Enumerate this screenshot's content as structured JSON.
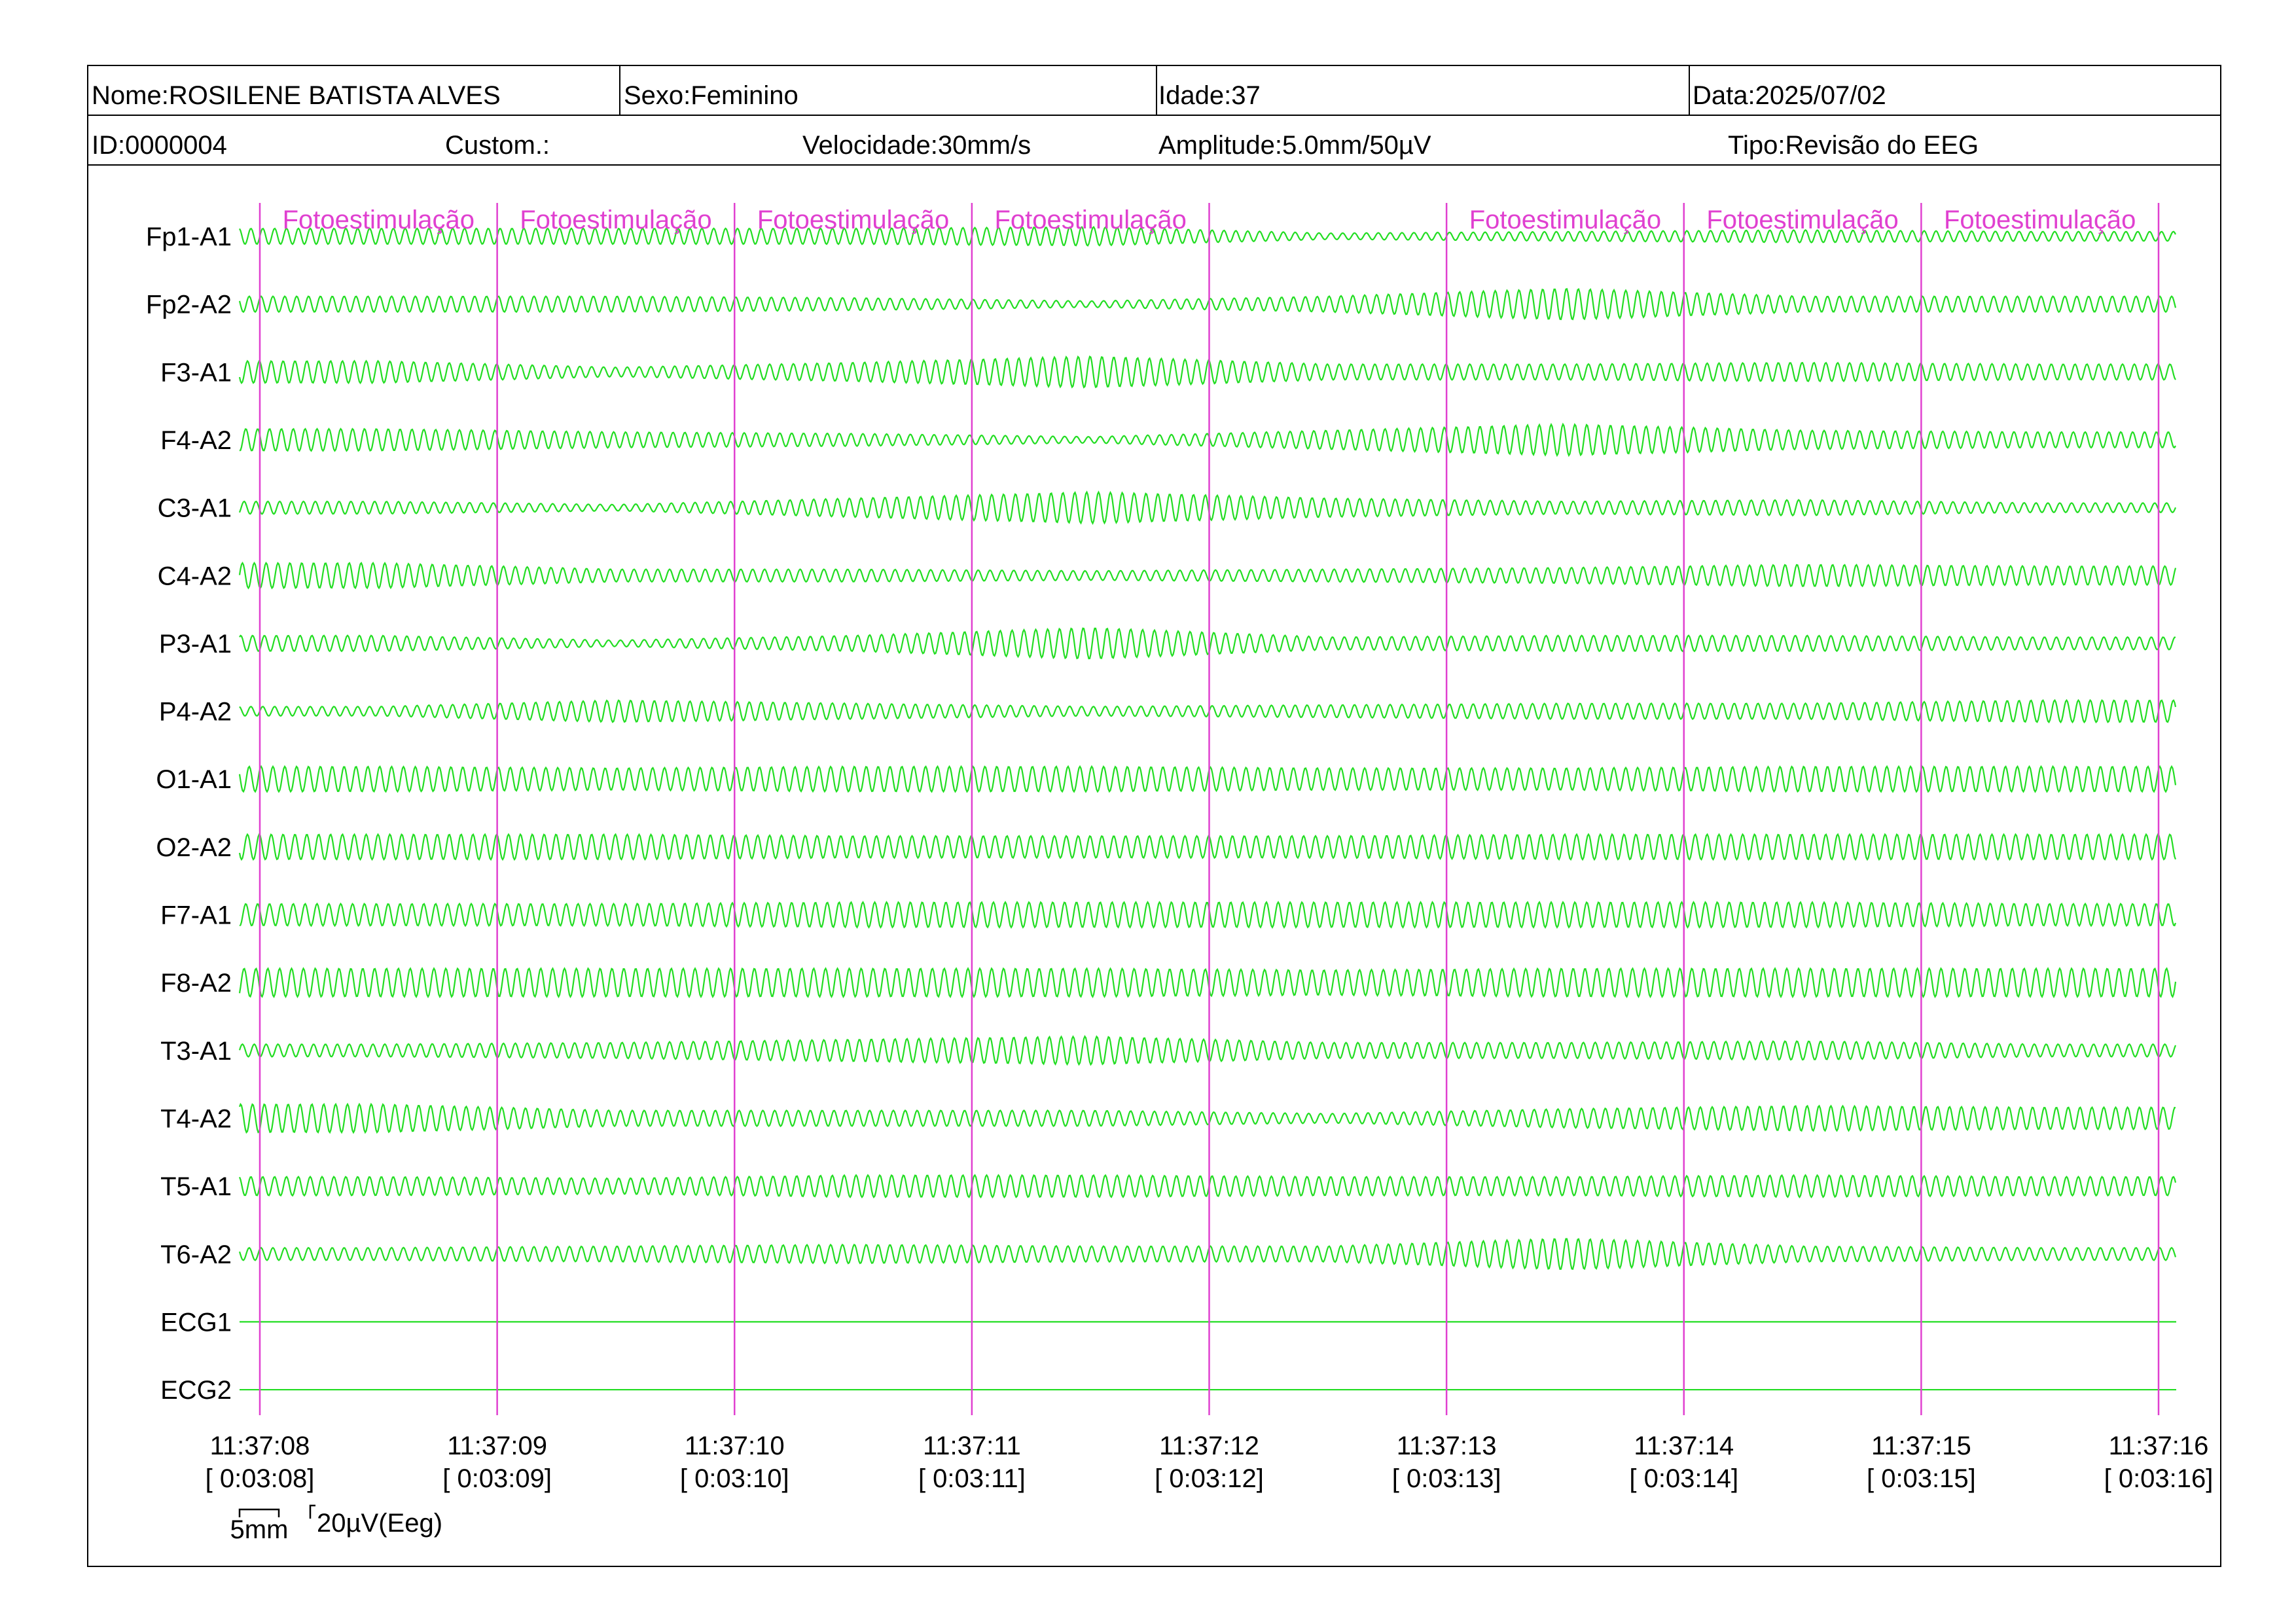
{
  "header": {
    "nome": "Nome:ROSILENE BATISTA ALVES",
    "sexo": "Sexo:Feminino",
    "idade": "Idade:37",
    "data": "Data:2025/07/02",
    "id": "ID:0000004",
    "custom": "Custom.:",
    "velocidade": "Velocidade:30mm/s",
    "amplitude": "Amplitude:5.0mm/50µV",
    "tipo": "Tipo:Revisão do EEG"
  },
  "colors": {
    "trace": "#22dd22",
    "marker": "#e040d0",
    "frame": "#000000"
  },
  "chart_data": {
    "type": "line",
    "channels": [
      "Fp1-A1",
      "Fp2-A2",
      "F3-A1",
      "F4-A2",
      "C3-A1",
      "C4-A2",
      "P3-A1",
      "P4-A2",
      "O1-A1",
      "O2-A2",
      "F7-A1",
      "F8-A2",
      "T3-A1",
      "T4-A2",
      "T5-A1",
      "T6-A2",
      "ECG1",
      "ECG2"
    ],
    "time_ticks": [
      "11:37:08",
      "11:37:09",
      "11:37:10",
      "11:37:11",
      "11:37:12",
      "11:37:13",
      "11:37:14",
      "11:37:15",
      "11:37:16"
    ],
    "elapsed_ticks": [
      "[ 0:03:08]",
      "[ 0:03:09]",
      "[ 0:03:10]",
      "[ 0:03:11]",
      "[ 0:03:12]",
      "[ 0:03:13]",
      "[ 0:03:14]",
      "[ 0:03:15]",
      "[ 0:03:16]"
    ],
    "event_label": "Fotoestimulação",
    "event_intervals": [
      0,
      1,
      2,
      3,
      5,
      6,
      7
    ],
    "cycles_per_interval": 20,
    "amplitude_profile": {
      "Fp1-A1": [
        5,
        5,
        5,
        6,
        2,
        3,
        4,
        3
      ],
      "Fp2-A2": [
        5,
        5,
        4,
        2,
        5,
        10,
        5,
        5
      ],
      "F3-A1": [
        7,
        3,
        6,
        10,
        5,
        5,
        6,
        5
      ],
      "F4-A2": [
        7,
        5,
        4,
        2,
        6,
        10,
        6,
        5
      ],
      "C3-A1": [
        4,
        2,
        6,
        10,
        6,
        4,
        5,
        3
      ],
      "C4-A2": [
        8,
        4,
        4,
        3,
        4,
        5,
        7,
        6
      ],
      "P3-A1": [
        5,
        2,
        5,
        10,
        4,
        5,
        5,
        4
      ],
      "P4-A2": [
        3,
        7,
        5,
        3,
        4,
        5,
        5,
        7
      ],
      "O1-A1": [
        8,
        7,
        8,
        8,
        7,
        7,
        8,
        8
      ],
      "O2-A2": [
        8,
        8,
        7,
        7,
        7,
        8,
        8,
        8
      ],
      "F7-A1": [
        7,
        7,
        8,
        8,
        8,
        8,
        8,
        7
      ],
      "F8-A2": [
        9,
        9,
        9,
        9,
        8,
        9,
        9,
        9
      ],
      "T3-A1": [
        4,
        5,
        7,
        9,
        5,
        5,
        6,
        4
      ],
      "T4-A2": [
        9,
        5,
        5,
        5,
        3,
        6,
        8,
        7
      ],
      "T5-A1": [
        6,
        5,
        7,
        7,
        6,
        6,
        7,
        6
      ],
      "T6-A2": [
        4,
        5,
        6,
        5,
        5,
        10,
        5,
        4
      ],
      "ECG1": [
        0,
        0,
        0,
        0,
        0,
        0,
        0,
        0
      ],
      "ECG2": [
        0,
        0,
        0,
        0,
        0,
        0,
        0,
        0
      ]
    },
    "amplitude_unit": "µV",
    "scale_bar": {
      "time_label": "5mm",
      "amplitude_label": "20µV(Eeg)"
    }
  }
}
